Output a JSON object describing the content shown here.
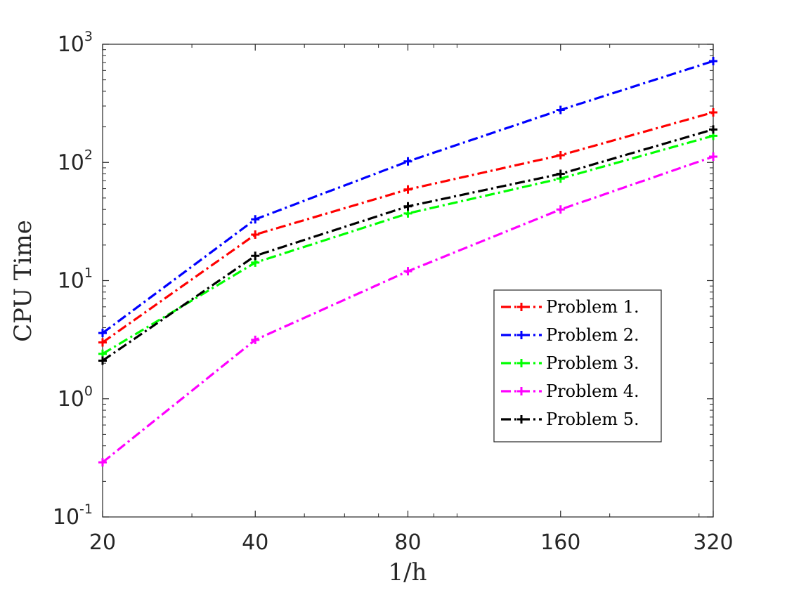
{
  "chart_data": {
    "type": "line",
    "title": "",
    "xlabel": "1/h",
    "ylabel": "CPU Time",
    "x_scale": "log2",
    "y_scale": "log10",
    "x": [
      20,
      40,
      80,
      160,
      320
    ],
    "x_tick_labels": [
      "20",
      "40",
      "80",
      "160",
      "320"
    ],
    "xlim": [
      20,
      320
    ],
    "ylim": [
      0.1,
      1000
    ],
    "y_ticks": [
      {
        "base": "10",
        "exp": "-1",
        "value": 0.1
      },
      {
        "base": "10",
        "exp": "0",
        "value": 1
      },
      {
        "base": "10",
        "exp": "1",
        "value": 10
      },
      {
        "base": "10",
        "exp": "2",
        "value": 100
      },
      {
        "base": "10",
        "exp": "3",
        "value": 1000
      }
    ],
    "grid": false,
    "legend_position": "lower-right",
    "marker": "+",
    "line_style": "dash-dot",
    "series": [
      {
        "name": "Problem 1.",
        "color": "#ff0000",
        "values": [
          3.0,
          24.5,
          59,
          115,
          265
        ]
      },
      {
        "name": "Problem 2.",
        "color": "#0000ff",
        "values": [
          3.6,
          33,
          102,
          278,
          720
        ]
      },
      {
        "name": "Problem 3.",
        "color": "#00ff00",
        "values": [
          2.4,
          14.2,
          37,
          73,
          168
        ]
      },
      {
        "name": "Problem 4.",
        "color": "#ff00ff",
        "values": [
          0.29,
          3.15,
          12,
          40,
          112
        ]
      },
      {
        "name": "Problem 5.",
        "color": "#000000",
        "values": [
          2.1,
          16.2,
          42.5,
          80,
          190
        ]
      }
    ]
  }
}
